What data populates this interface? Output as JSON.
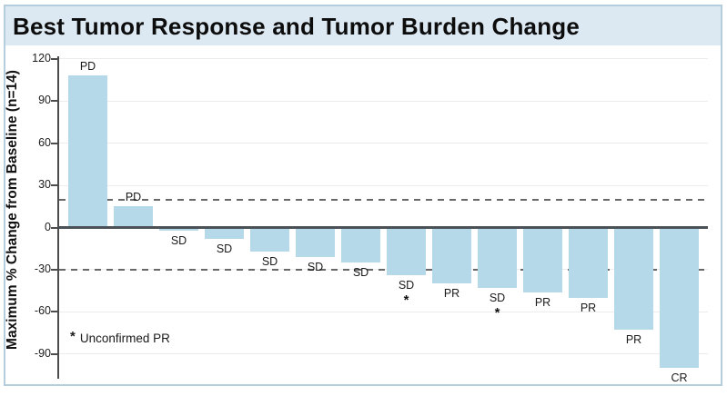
{
  "window": {
    "title": "Best Tumor Response and Tumor Burden Change"
  },
  "chart_data": {
    "type": "bar",
    "subtype": "waterfall",
    "title": "Best Tumor Response and Tumor Burden Change",
    "xlabel": "",
    "ylabel": "Maximum % Change from Baseline (n=14)",
    "n": 14,
    "ylim": [
      -110,
      122
    ],
    "yticks": [
      120,
      90,
      60,
      30,
      0,
      -30,
      -60,
      -90
    ],
    "grid": "horizontal-light",
    "threshold_dashed_lines": [
      20,
      -30
    ],
    "bars": [
      {
        "value": 108,
        "response": "PD",
        "asterisk": false
      },
      {
        "value": 15,
        "response": "PD",
        "asterisk": false
      },
      {
        "value": -2,
        "response": "SD",
        "asterisk": false
      },
      {
        "value": -8,
        "response": "SD",
        "asterisk": false
      },
      {
        "value": -17,
        "response": "SD",
        "asterisk": false
      },
      {
        "value": -21,
        "response": "SD",
        "asterisk": false
      },
      {
        "value": -25,
        "response": "SD",
        "asterisk": false
      },
      {
        "value": -34,
        "response": "SD",
        "asterisk": true
      },
      {
        "value": -40,
        "response": "PR",
        "asterisk": false
      },
      {
        "value": -43,
        "response": "SD",
        "asterisk": true
      },
      {
        "value": -46,
        "response": "PR",
        "asterisk": false
      },
      {
        "value": -50,
        "response": "PR",
        "asterisk": false
      },
      {
        "value": -73,
        "response": "PR",
        "asterisk": false
      },
      {
        "value": -100,
        "response": "CR",
        "asterisk": false
      }
    ],
    "footnote": {
      "marker": "*",
      "text": "Unconfirmed PR"
    },
    "legend": "none"
  },
  "colors": {
    "bar_fill": "#b5d9e8",
    "header_bg": "#dce9f2",
    "card_border": "#b4cedd",
    "zero_line": "#4b5257",
    "dashed_line": "#686868",
    "gridline": "#ececec",
    "text": "#1a1a1a"
  }
}
